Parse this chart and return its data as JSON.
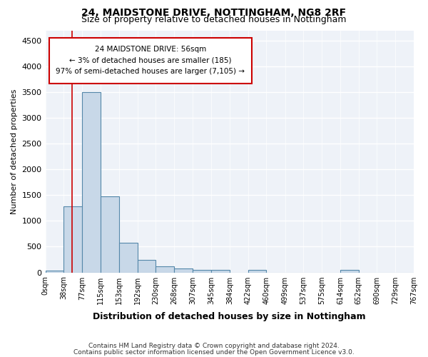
{
  "title1": "24, MAIDSTONE DRIVE, NOTTINGHAM, NG8 2RF",
  "title2": "Size of property relative to detached houses in Nottingham",
  "xlabel": "Distribution of detached houses by size in Nottingham",
  "ylabel": "Number of detached properties",
  "bin_edges": [
    0,
    38,
    77,
    115,
    153,
    192,
    230,
    268,
    307,
    345,
    384,
    422,
    460,
    499,
    537,
    575,
    614,
    652,
    690,
    729,
    767
  ],
  "bar_heights": [
    40,
    1280,
    3500,
    1480,
    580,
    240,
    115,
    80,
    50,
    50,
    0,
    50,
    0,
    0,
    0,
    0,
    50,
    0,
    0,
    0
  ],
  "bar_color": "#c8d8e8",
  "bar_edge_color": "#5588aa",
  "vline_x": 56,
  "vline_color": "#cc0000",
  "annotation_box_text": "24 MAIDSTONE DRIVE: 56sqm\n← 3% of detached houses are smaller (185)\n97% of semi-detached houses are larger (7,105) →",
  "box_edge_color": "#cc0000",
  "ylim": [
    0,
    4700
  ],
  "yticks": [
    0,
    500,
    1000,
    1500,
    2000,
    2500,
    3000,
    3500,
    4000,
    4500
  ],
  "background_color": "#eef2f8",
  "grid_color": "#ffffff",
  "footer1": "Contains HM Land Registry data © Crown copyright and database right 2024.",
  "footer2": "Contains public sector information licensed under the Open Government Licence v3.0."
}
